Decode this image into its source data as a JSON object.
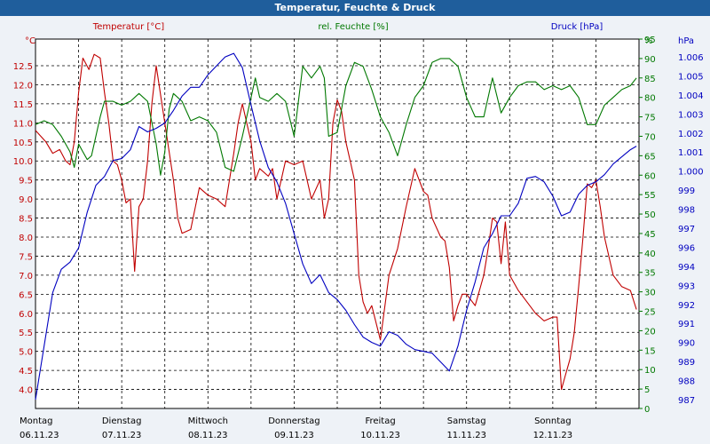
{
  "window": {
    "title": "Temperatur, Feuchte & Druck"
  },
  "colors": {
    "temp": "#c00000",
    "hum": "#007800",
    "press": "#0000c0",
    "grid": "#000000",
    "title_bg": "#1f5e9c"
  },
  "chart_data": {
    "type": "line",
    "title": "Temperatur, Feuchte & Druck",
    "x_labels": [
      {
        "day": "Montag",
        "date": "06.11.23"
      },
      {
        "day": "Dienstag",
        "date": "07.11.23"
      },
      {
        "day": "Mittwoch",
        "date": "08.11.23"
      },
      {
        "day": "Donnerstag",
        "date": "09.11.23"
      },
      {
        "day": "Freitag",
        "date": "10.11.23"
      },
      {
        "day": "Samstag",
        "date": "11.11.23"
      },
      {
        "day": "Sonntag",
        "date": "12.11.23"
      }
    ],
    "x_range": [
      0,
      7
    ],
    "axes": {
      "left": {
        "label": "Temperatur [°C]",
        "unit": "°C",
        "min": 3.5,
        "max": 13.2,
        "ticks": [
          "4.0",
          "4.5",
          "5.0",
          "5.5",
          "6.0",
          "6.5",
          "7.0",
          "7.5",
          "8.0",
          "8.5",
          "9.0",
          "9.5",
          "10.0",
          "10.5",
          "11.0",
          "11.5",
          "12.0",
          "12.5"
        ]
      },
      "mid": {
        "label": "rel. Feuchte [%]",
        "unit": "%",
        "min": 0,
        "max": 95,
        "ticks": [
          "0",
          "5",
          "10",
          "15",
          "20",
          "25",
          "30",
          "35",
          "40",
          "45",
          "50",
          "55",
          "60",
          "65",
          "70",
          "75",
          "80",
          "85",
          "90",
          "95"
        ]
      },
      "right": {
        "label": "Druck [hPa]",
        "unit": "hPa",
        "min": 986.5,
        "max": 1007.2,
        "ticks": [
          "987",
          "988",
          "989",
          "990",
          "991",
          "992",
          "993",
          "994",
          "996",
          "997",
          "998",
          "999",
          "1.000",
          "1.001",
          "1.002",
          "1.003",
          "1.004",
          "1.005",
          "1.006"
        ]
      }
    },
    "series": [
      {
        "name": "Temperatur",
        "axis": "left",
        "color": "#c00000",
        "x": [
          0,
          0.12,
          0.2,
          0.28,
          0.35,
          0.4,
          0.45,
          0.5,
          0.55,
          0.62,
          0.68,
          0.75,
          0.8,
          0.85,
          0.9,
          0.95,
          1.0,
          1.05,
          1.1,
          1.15,
          1.2,
          1.25,
          1.3,
          1.35,
          1.4,
          1.5,
          1.6,
          1.65,
          1.7,
          1.8,
          1.9,
          2.0,
          2.1,
          2.2,
          2.3,
          2.35,
          2.4,
          2.5,
          2.55,
          2.6,
          2.7,
          2.75,
          2.8,
          2.9,
          3.0,
          3.1,
          3.2,
          3.3,
          3.35,
          3.4,
          3.45,
          3.5,
          3.55,
          3.6,
          3.65,
          3.7,
          3.75,
          3.8,
          3.85,
          3.9,
          4.0,
          4.1,
          4.2,
          4.3,
          4.4,
          4.5,
          4.55,
          4.6,
          4.7,
          4.75,
          4.8,
          4.85,
          4.9,
          4.95,
          5.0,
          5.1,
          5.2,
          5.25,
          5.3,
          5.35,
          5.4,
          5.45,
          5.5,
          5.6,
          5.7,
          5.8,
          5.9,
          6.0,
          6.05,
          6.1,
          6.15,
          6.2,
          6.25,
          6.3,
          6.35,
          6.4,
          6.45,
          6.5,
          6.55,
          6.6,
          6.7,
          6.8,
          6.9,
          6.97
        ],
        "values": [
          10.8,
          10.5,
          10.2,
          10.3,
          10.0,
          9.9,
          10.5,
          11.8,
          12.7,
          12.4,
          12.8,
          12.7,
          11.8,
          11.0,
          10.0,
          9.9,
          9.5,
          8.9,
          9.0,
          7.1,
          8.8,
          9.0,
          10.0,
          11.5,
          12.5,
          11.0,
          9.5,
          8.5,
          8.1,
          8.2,
          9.3,
          9.1,
          9.0,
          8.8,
          10.2,
          11.0,
          11.5,
          10.5,
          9.5,
          9.8,
          9.6,
          9.8,
          9.0,
          10.0,
          9.9,
          10.0,
          9.0,
          9.5,
          8.5,
          9.0,
          11.0,
          11.6,
          11.3,
          10.5,
          10.0,
          9.5,
          7.0,
          6.3,
          6.0,
          6.2,
          5.3,
          7.0,
          7.7,
          8.8,
          9.8,
          9.2,
          9.1,
          8.5,
          8.0,
          7.9,
          7.2,
          5.8,
          6.2,
          6.5,
          6.5,
          6.2,
          7.0,
          7.7,
          8.5,
          8.4,
          7.3,
          8.4,
          7.0,
          6.6,
          6.3,
          6.0,
          5.8,
          5.9,
          5.9,
          4.0,
          4.4,
          4.8,
          5.5,
          6.7,
          8.0,
          9.4,
          9.3,
          9.5,
          8.8,
          8.0,
          7.0,
          6.7,
          6.6,
          6.1
        ]
      },
      {
        "name": "rel. Feuchte",
        "axis": "mid",
        "color": "#007800",
        "x": [
          0,
          0.1,
          0.2,
          0.3,
          0.4,
          0.45,
          0.5,
          0.55,
          0.6,
          0.65,
          0.7,
          0.75,
          0.8,
          0.9,
          1.0,
          1.1,
          1.2,
          1.3,
          1.4,
          1.45,
          1.5,
          1.55,
          1.6,
          1.7,
          1.8,
          1.9,
          2.0,
          2.1,
          2.2,
          2.3,
          2.4,
          2.5,
          2.55,
          2.6,
          2.7,
          2.8,
          2.9,
          3.0,
          3.1,
          3.2,
          3.3,
          3.35,
          3.4,
          3.5,
          3.6,
          3.7,
          3.8,
          3.9,
          4.0,
          4.1,
          4.2,
          4.3,
          4.4,
          4.5,
          4.6,
          4.7,
          4.8,
          4.9,
          5.0,
          5.1,
          5.2,
          5.3,
          5.4,
          5.5,
          5.6,
          5.7,
          5.8,
          5.9,
          6.0,
          6.1,
          6.2,
          6.3,
          6.4,
          6.5,
          6.6,
          6.7,
          6.8,
          6.9,
          6.97
        ],
        "values": [
          73,
          74,
          73,
          70,
          66,
          62,
          68,
          66,
          64,
          65,
          70,
          75,
          79,
          79,
          78,
          79,
          81,
          79,
          68,
          60,
          66,
          77,
          81,
          79,
          74,
          75,
          74,
          71,
          62,
          61,
          70,
          80,
          85,
          80,
          79,
          81,
          79,
          70,
          88,
          85,
          88,
          85,
          70,
          71,
          83,
          89,
          88,
          82,
          75,
          71,
          65,
          73,
          80,
          83,
          89,
          90,
          90,
          88,
          80,
          75,
          75,
          85,
          76,
          80,
          83,
          84,
          84,
          82,
          83,
          82,
          83,
          80,
          73,
          73,
          78,
          80,
          82,
          83,
          85
        ]
      },
      {
        "name": "Druck",
        "axis": "right",
        "color": "#0000c0",
        "x": [
          0,
          0.1,
          0.2,
          0.3,
          0.4,
          0.5,
          0.6,
          0.7,
          0.8,
          0.9,
          1.0,
          1.1,
          1.2,
          1.3,
          1.4,
          1.5,
          1.6,
          1.7,
          1.8,
          1.9,
          2.0,
          2.1,
          2.2,
          2.3,
          2.4,
          2.5,
          2.6,
          2.7,
          2.8,
          2.9,
          3.0,
          3.1,
          3.2,
          3.3,
          3.4,
          3.5,
          3.6,
          3.7,
          3.8,
          3.9,
          4.0,
          4.1,
          4.2,
          4.3,
          4.4,
          4.5,
          4.6,
          4.7,
          4.8,
          4.9,
          5.0,
          5.1,
          5.2,
          5.3,
          5.4,
          5.5,
          5.6,
          5.7,
          5.8,
          5.9,
          6.0,
          6.1,
          6.2,
          6.3,
          6.4,
          6.5,
          6.6,
          6.7,
          6.8,
          6.9,
          6.97
        ],
        "values": [
          987.0,
          990.0,
          993.0,
          994.3,
          994.7,
          995.5,
          997.5,
          999.0,
          999.5,
          1000.4,
          1000.5,
          1001.0,
          1002.3,
          1002.0,
          1002.2,
          1002.5,
          1003.2,
          1004.0,
          1004.5,
          1004.5,
          1005.2,
          1005.7,
          1006.2,
          1006.4,
          1005.6,
          1003.5,
          1001.5,
          1000.0,
          999.2,
          998.0,
          996.3,
          994.6,
          993.5,
          994.0,
          993.0,
          992.6,
          992.0,
          991.2,
          990.5,
          990.2,
          990.0,
          990.8,
          990.6,
          990.1,
          989.8,
          989.7,
          989.6,
          989.1,
          988.6,
          990.0,
          992.0,
          993.6,
          995.5,
          996.3,
          997.3,
          997.3,
          998.0,
          999.4,
          999.5,
          999.2,
          998.4,
          997.3,
          997.5,
          998.5,
          999.0,
          999.2,
          999.6,
          1000.2,
          1000.6,
          1001.0,
          1001.2
        ]
      }
    ]
  }
}
